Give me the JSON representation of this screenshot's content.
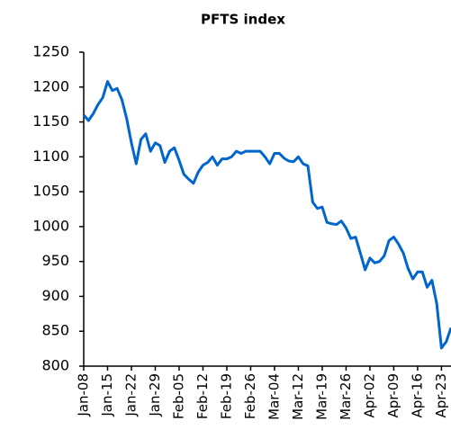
{
  "chart_data": {
    "type": "line",
    "title": "PFTS index",
    "categories": [
      "Jan-08",
      null,
      null,
      null,
      null,
      "Jan-15",
      null,
      null,
      null,
      null,
      "Jan-22",
      null,
      null,
      null,
      null,
      "Jan-29",
      null,
      null,
      null,
      null,
      "Feb-05",
      null,
      null,
      null,
      null,
      "Feb-12",
      null,
      null,
      null,
      null,
      "Feb-19",
      null,
      null,
      null,
      null,
      "Feb-26",
      null,
      null,
      null,
      null,
      "Mar-04",
      null,
      null,
      null,
      null,
      "Mar-12",
      null,
      null,
      null,
      null,
      "Mar-19",
      null,
      null,
      null,
      null,
      "Mar-26",
      null,
      null,
      null,
      null,
      "Apr-02",
      null,
      null,
      null,
      null,
      "Apr-09",
      null,
      null,
      null,
      null,
      "Apr-16",
      null,
      null,
      null,
      null,
      "Apr-23",
      null,
      null
    ],
    "values": [
      1160,
      1152,
      1162,
      1175,
      1185,
      1208,
      1195,
      1198,
      1182,
      1155,
      1120,
      1090,
      1125,
      1133,
      1108,
      1120,
      1116,
      1092,
      1108,
      1113,
      1095,
      1075,
      1068,
      1062,
      1078,
      1088,
      1092,
      1100,
      1088,
      1097,
      1097,
      1100,
      1108,
      1105,
      1108,
      1108,
      1108,
      1108,
      1100,
      1090,
      1105,
      1105,
      1098,
      1094,
      1093,
      1100,
      1090,
      1087,
      1035,
      1026,
      1028,
      1006,
      1004,
      1003,
      1008,
      998,
      983,
      985,
      962,
      938,
      955,
      948,
      950,
      958,
      980,
      985,
      975,
      962,
      940,
      925,
      935,
      935,
      913,
      923,
      890,
      826,
      835,
      855
    ],
    "color": "#0066cc",
    "ylim": [
      800,
      1250
    ],
    "yticks": [
      800,
      850,
      900,
      950,
      1000,
      1050,
      1100,
      1150,
      1200,
      1250
    ],
    "grid": false
  }
}
